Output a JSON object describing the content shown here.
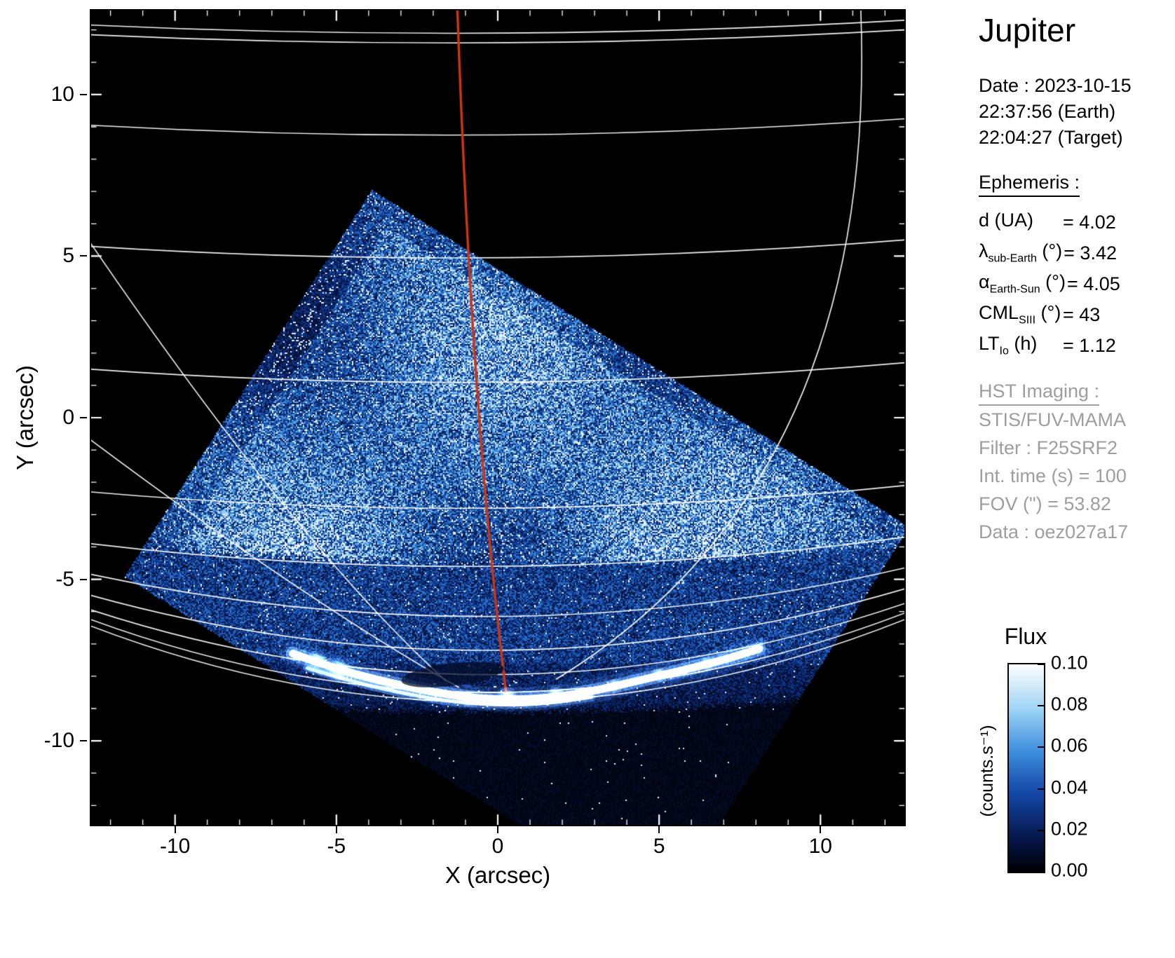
{
  "panel": {
    "title": "Jupiter",
    "date": "Date : 2023-10-15",
    "time_earth": "22:37:56 (Earth)",
    "time_target": "22:04:27 (Target)",
    "ephemeris_heading": "Ephemeris :",
    "ephemeris": [
      {
        "base": "d",
        "sub": "",
        "rest": " (UA)    ",
        "val": "= 4.02"
      },
      {
        "base": "λ",
        "sub": "sub-Earth",
        "rest": " (°) ",
        "val": "= 3.42"
      },
      {
        "base": "α",
        "sub": "Earth-Sun",
        "rest": " (°) ",
        "val": "= 4.05"
      },
      {
        "base": "CML",
        "sub": "SIII",
        "rest": " (°) ",
        "val": "= 43"
      },
      {
        "base": "LT",
        "sub": "Io",
        "rest": " (h) ",
        "val": "= 1.12"
      }
    ],
    "hst_heading": "HST Imaging :",
    "hst": [
      "STIS/FUV-MAMA",
      "Filter : F25SRF2",
      "Int. time (s) = 100",
      "FOV (\") = 53.82",
      "Data : oez027a17"
    ]
  },
  "chart_data": {
    "type": "heatmap",
    "xlabel": "X (arcsec)",
    "ylabel": "Y (arcsec)",
    "xlim": [
      -12.6,
      12.6
    ],
    "ylim": [
      -12.6,
      12.6
    ],
    "xticks": [
      -10,
      -5,
      0,
      5,
      10
    ],
    "yticks": [
      -10,
      -5,
      0,
      5,
      10
    ],
    "minor_tick_step": 1,
    "background": "#000000",
    "colorbar": {
      "title": "Flux",
      "unit": "(counts.s⁻¹)",
      "range": [
        0.0,
        0.1
      ],
      "ticks": [
        "0.10",
        "0.08",
        "0.06",
        "0.04",
        "0.02",
        "0.00"
      ]
    },
    "colormap": [
      {
        "pos": 0.0,
        "color": "#000004"
      },
      {
        "pos": 0.18,
        "color": "#061a52"
      },
      {
        "pos": 0.38,
        "color": "#1448a8"
      },
      {
        "pos": 0.58,
        "color": "#3c8ede"
      },
      {
        "pos": 0.78,
        "color": "#9cd2f4"
      },
      {
        "pos": 1.0,
        "color": "#ffffff"
      }
    ],
    "fov_quad": [
      [
        -3.9,
        7.05
      ],
      [
        12.65,
        -3.55
      ],
      [
        5.1,
        -15.6
      ],
      [
        -11.45,
        -5.0
      ]
    ],
    "graticule": {
      "color": "#ffffff",
      "latitudes": [
        [
          12.15,
          11.9,
          12.3
        ],
        [
          11.85,
          11.6,
          12.0
        ],
        [
          9.05,
          8.75,
          9.25
        ],
        [
          5.3,
          4.95,
          5.5
        ],
        [
          1.5,
          1.1,
          1.7
        ],
        [
          -2.3,
          -2.8,
          -2.1
        ],
        [
          -3.9,
          -4.6,
          -3.7
        ],
        [
          -4.85,
          -6.15,
          -4.65
        ],
        [
          -5.5,
          -7.2,
          -5.3
        ],
        [
          -5.95,
          -7.95,
          -5.75
        ],
        [
          -6.25,
          -8.5,
          -6.05
        ],
        [
          -6.45,
          -8.8,
          -6.25
        ]
      ],
      "meridians": [
        {
          "start": [
            11.25,
            12.6
          ],
          "ctrl": [
            11.8,
            -2.0
          ],
          "end": [
            1.8,
            -8.1
          ]
        },
        {
          "start": [
            -16.0,
            10.5
          ],
          "ctrl": [
            -7.3,
            -3.0
          ],
          "end": [
            -1.6,
            -8.15
          ]
        },
        {
          "start": [
            -15.5,
            1.5
          ],
          "ctrl": [
            -6.8,
            -5.2
          ],
          "end": [
            -1.2,
            -8.35
          ]
        }
      ]
    },
    "central_meridian": {
      "color": "#d03510",
      "start": [
        -1.25,
        12.6
      ],
      "ctrl": [
        -0.8,
        -0.2
      ],
      "end": [
        0.3,
        -8.85
      ]
    },
    "aurora": {
      "main_arc": [
        [
          -6.35,
          -7.3
        ],
        [
          -5.1,
          -7.75
        ],
        [
          -3.6,
          -8.15
        ],
        [
          -2.0,
          -8.5
        ],
        [
          -0.4,
          -8.72
        ],
        [
          1.2,
          -8.72
        ],
        [
          2.8,
          -8.5
        ],
        [
          4.3,
          -8.15
        ],
        [
          5.8,
          -7.8
        ],
        [
          7.0,
          -7.5
        ],
        [
          8.1,
          -7.15
        ]
      ],
      "secondary_arc": [
        [
          -5.9,
          -7.75
        ],
        [
          -4.6,
          -8.15
        ],
        [
          -3.1,
          -8.5
        ],
        [
          -1.6,
          -8.78
        ],
        [
          0.0,
          -8.9
        ],
        [
          1.5,
          -8.85
        ],
        [
          2.9,
          -8.65
        ]
      ],
      "spots": [
        [
          -5.6,
          -7.5,
          14
        ],
        [
          -4.9,
          -7.8,
          17
        ],
        [
          -0.9,
          -8.7,
          13
        ],
        [
          0.3,
          -8.62,
          15
        ],
        [
          1.8,
          -8.55,
          13
        ],
        [
          3.6,
          -8.3,
          11
        ],
        [
          5.0,
          -7.95,
          12
        ],
        [
          6.5,
          -7.6,
          11
        ]
      ],
      "dark_lane": {
        "center": [
          -1.4,
          -7.95
        ],
        "rx": 1.6,
        "ry": 0.35
      }
    },
    "intensity_bands": {
      "disk_base": 0.5,
      "mid_base": 0.3,
      "low_base": 0.16,
      "floor_base": 0.05
    }
  }
}
